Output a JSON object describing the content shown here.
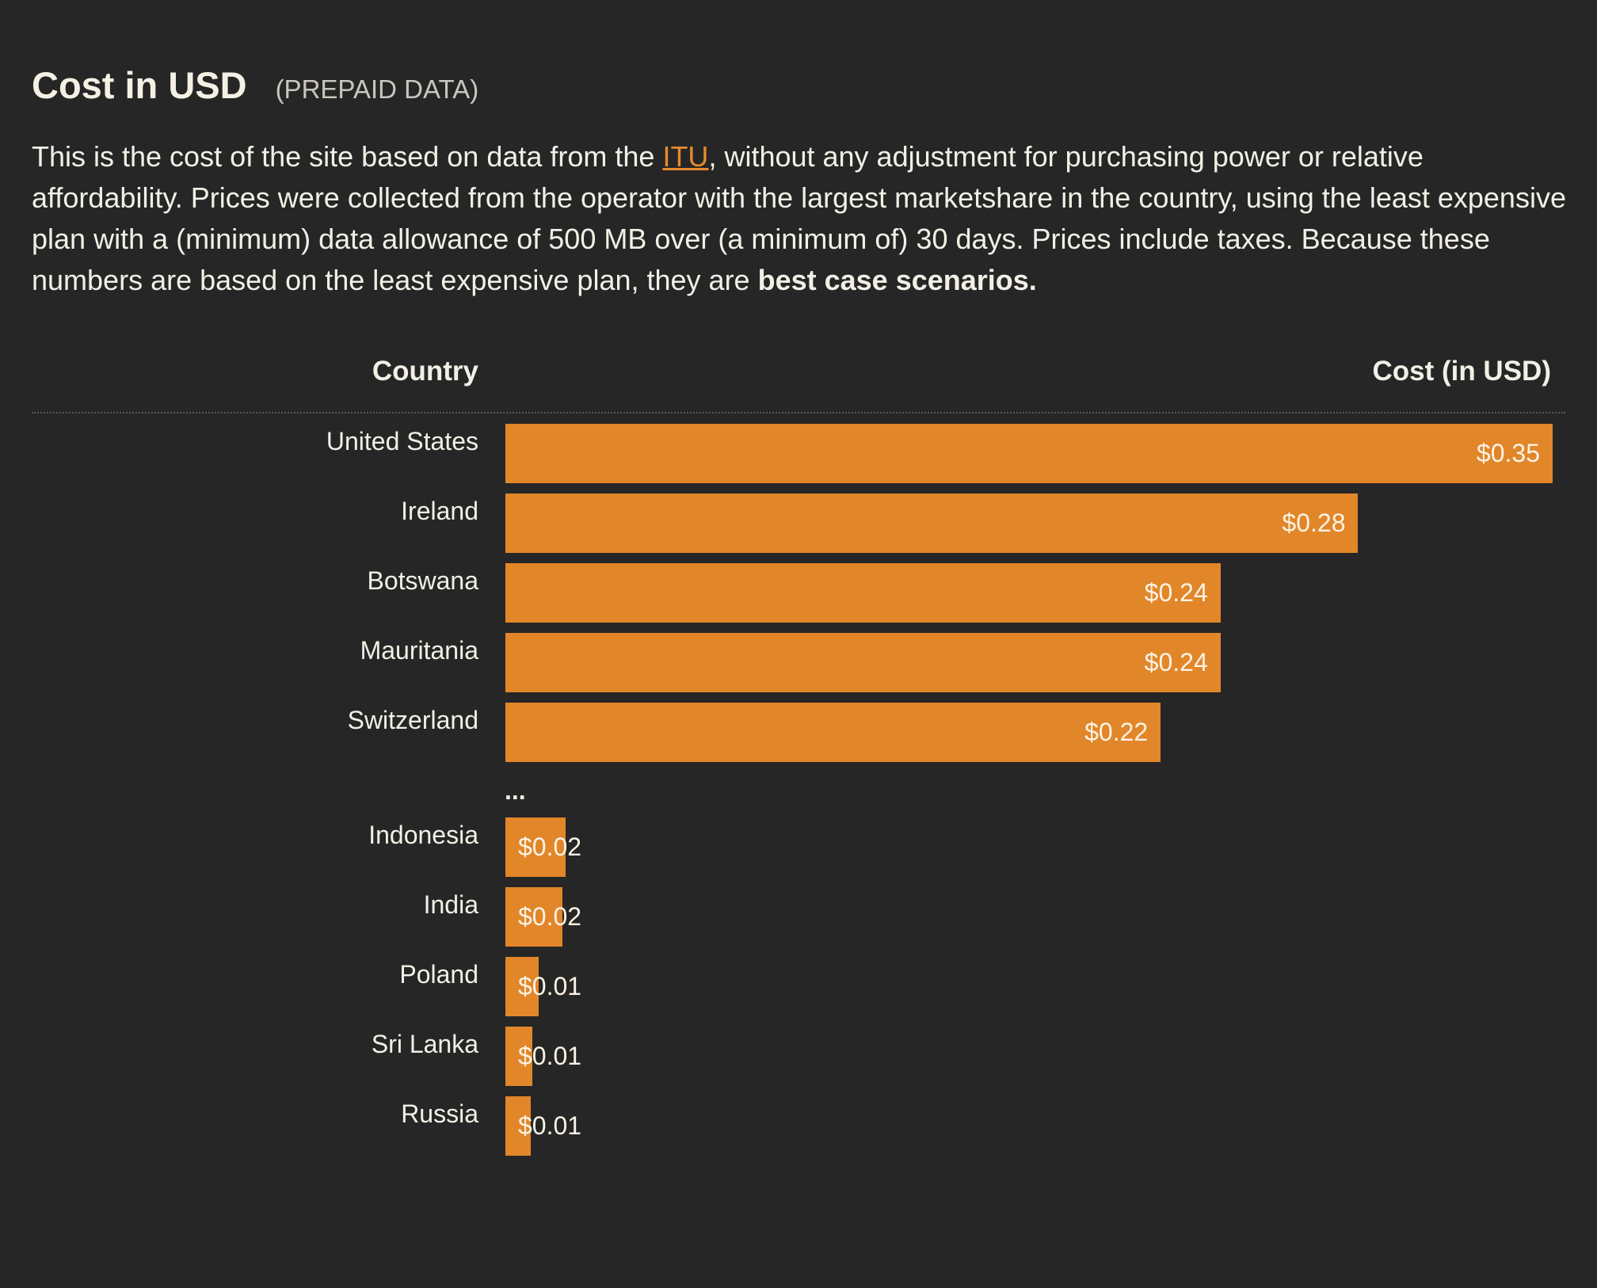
{
  "header": {
    "title": "Cost in USD",
    "subtitle": "(PREPAID DATA)"
  },
  "description": {
    "part1": "This is the cost of the site based on data from the ",
    "link": "ITU",
    "part2": ", without any adjustment for purchasing power or relative affordability. Prices were collected from the operator with the largest marketshare in the country, using the least expensive plan with a (minimum) data allowance of 500 MB over (a minimum of) 30 days. Prices include taxes. Because these numbers are based on the least expensive plan, they are ",
    "bold": "best case scenarios."
  },
  "chart_data": {
    "type": "bar",
    "orientation": "horizontal",
    "column_headers": {
      "category": "Country",
      "value": "Cost (in USD)"
    },
    "gap_marker": "...",
    "xlim": [
      0,
      0.35
    ],
    "bar_color": "#e2862a",
    "categories": [
      "United States",
      "Ireland",
      "Botswana",
      "Mauritania",
      "Switzerland",
      "Indonesia",
      "India",
      "Poland",
      "Sri Lanka",
      "Russia"
    ],
    "values": [
      0.35,
      0.285,
      0.239,
      0.239,
      0.219,
      0.02,
      0.019,
      0.011,
      0.009,
      0.0085
    ],
    "value_labels": [
      "$0.35",
      "$0.28",
      "$0.24",
      "$0.24",
      "$0.22",
      "$0.02",
      "$0.02",
      "$0.01",
      "$0.01",
      "$0.01"
    ]
  },
  "colors": {
    "background": "#262626",
    "accent": "#e68a2e",
    "text": "#f2f0e6"
  }
}
